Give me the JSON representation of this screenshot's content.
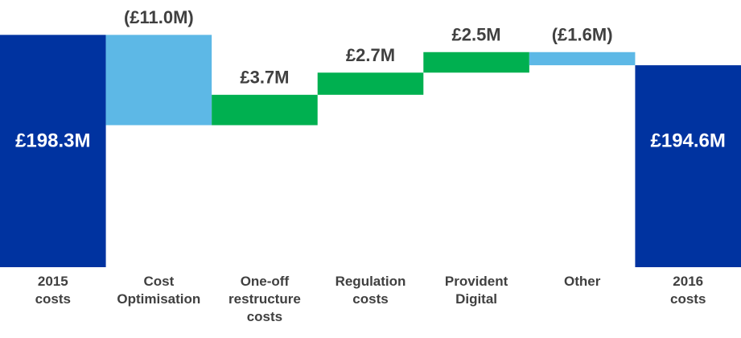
{
  "chart_data": {
    "type": "waterfall",
    "categories": [
      "2015 costs",
      "Cost Optimisation",
      "One-off restructure costs",
      "Regulation costs",
      "Provident Digital",
      "Other",
      "2016 costs"
    ],
    "values": [
      198.3,
      -11.0,
      3.7,
      2.7,
      2.5,
      -1.6,
      194.6
    ],
    "value_labels": [
      "£198.3M",
      "(£11.0M)",
      "£3.7M",
      "£2.7M",
      "£2.5M",
      "(£1.6M)",
      "£194.6M"
    ],
    "total_color": "#0033a0",
    "increase_color": "#00b050",
    "decrease_color": "#5db8e6",
    "ylim": [
      170,
      200
    ]
  }
}
